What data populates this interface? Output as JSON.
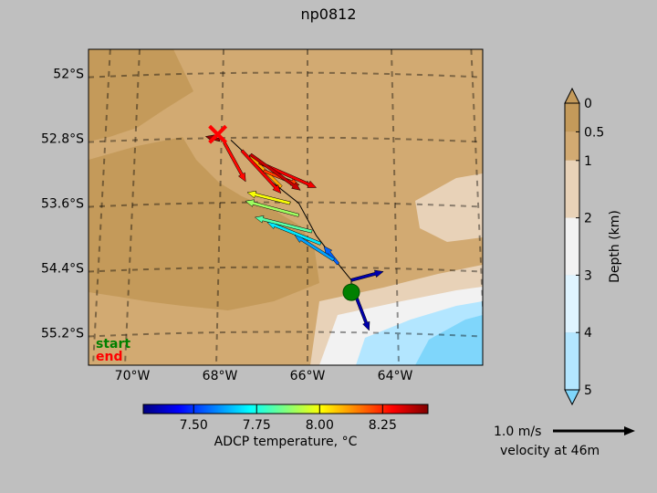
{
  "chart_data": {
    "type": "map",
    "title": "np0812",
    "lat_ticks": [
      "52°S",
      "52.8°S",
      "53.6°S",
      "54.4°S",
      "55.2°S"
    ],
    "lat_values": [
      -52.0,
      -52.8,
      -53.6,
      -54.4,
      -55.2
    ],
    "lon_ticks": [
      "70°W",
      "68°W",
      "66°W",
      "64°W"
    ],
    "lon_values": [
      -70,
      -68,
      -66,
      -64
    ],
    "extent": {
      "lon": [
        -71,
        -62
      ],
      "lat": [
        -55.6,
        -51.7
      ]
    },
    "track": {
      "start": {
        "lon": -65.0,
        "lat": -54.7,
        "label": "start",
        "color": "#008000"
      },
      "end": {
        "lon": -68.05,
        "lat": -52.75,
        "label": "end",
        "color": "#ff0000"
      },
      "points": [
        {
          "lon": -65.0,
          "lat": -54.7
        },
        {
          "lon": -65.0,
          "lat": -54.55
        },
        {
          "lon": -65.3,
          "lat": -54.35
        },
        {
          "lon": -65.8,
          "lat": -54.0
        },
        {
          "lon": -66.2,
          "lat": -53.6
        },
        {
          "lon": -66.9,
          "lat": -53.3
        },
        {
          "lon": -67.3,
          "lat": -53.05
        },
        {
          "lon": -67.75,
          "lat": -52.82
        }
      ]
    },
    "velocity_arrows": [
      {
        "lon": -65.0,
        "lat": -54.55,
        "u": 0.45,
        "v": 0.12,
        "temp": 7.35
      },
      {
        "lon": -65.0,
        "lat": -54.6,
        "u": 0.25,
        "v": -0.65,
        "temp": 7.35
      },
      {
        "lon": -65.3,
        "lat": -54.35,
        "u": -0.2,
        "v": 0.25,
        "temp": 7.55
      },
      {
        "lon": -65.4,
        "lat": -54.3,
        "u": -0.55,
        "v": 0.35,
        "temp": 7.62
      },
      {
        "lon": -65.7,
        "lat": -54.1,
        "u": -0.75,
        "v": 0.3,
        "temp": 7.7
      },
      {
        "lon": -65.9,
        "lat": -53.95,
        "u": -0.8,
        "v": 0.2,
        "temp": 7.82
      },
      {
        "lon": -66.2,
        "lat": -53.75,
        "u": -0.75,
        "v": 0.2,
        "temp": 7.9
      },
      {
        "lon": -66.4,
        "lat": -53.6,
        "u": -0.6,
        "v": 0.15,
        "temp": 8.0
      },
      {
        "lon": -66.6,
        "lat": -53.4,
        "u": -0.45,
        "v": 0.45,
        "temp": 8.1
      },
      {
        "lon": -67.0,
        "lat": -53.2,
        "u": 0.5,
        "v": -0.2,
        "temp": 8.22
      },
      {
        "lon": -67.1,
        "lat": -53.1,
        "u": 0.8,
        "v": -0.35,
        "temp": 8.3
      },
      {
        "lon": -67.3,
        "lat": -53.0,
        "u": 0.7,
        "v": -0.5,
        "temp": 8.35
      },
      {
        "lon": -67.5,
        "lat": -52.95,
        "u": 0.55,
        "v": -0.6,
        "temp": 8.3
      },
      {
        "lon": -67.9,
        "lat": -52.85,
        "u": 0.3,
        "v": -0.55,
        "temp": 8.28
      },
      {
        "lon": -68.0,
        "lat": -52.82,
        "u": -0.2,
        "v": 0.05,
        "temp": 8.4
      }
    ],
    "temperature_colorbar": {
      "label": "ADCP temperature, °C",
      "ticks": [
        "7.50",
        "7.75",
        "8.00",
        "8.25"
      ],
      "tick_values": [
        7.5,
        7.75,
        8.0,
        8.25
      ],
      "range": [
        7.3,
        8.43
      ],
      "colormap": [
        "#00007f",
        "#0000ff",
        "#007fff",
        "#00ffff",
        "#7fff7f",
        "#ffff00",
        "#ff7f00",
        "#ff0000",
        "#7f0000"
      ]
    },
    "depth_colorbar": {
      "label": "Depth (km)",
      "ticks": [
        "0",
        "0.5",
        "1",
        "2",
        "3",
        "4",
        "5"
      ],
      "tick_values": [
        0,
        0.5,
        1,
        2,
        3,
        4,
        5
      ],
      "colors": [
        "#c49a5a",
        "#d2aa72",
        "#e8d2b8",
        "#f2f2f2",
        "#dff4ff",
        "#b3e6ff",
        "#7fd6fb"
      ],
      "extend": "both"
    },
    "velocity_key": {
      "value_label": "1.0 m/s",
      "caption": "velocity at 46m"
    },
    "legend": {
      "start": "start",
      "end": "end"
    }
  }
}
